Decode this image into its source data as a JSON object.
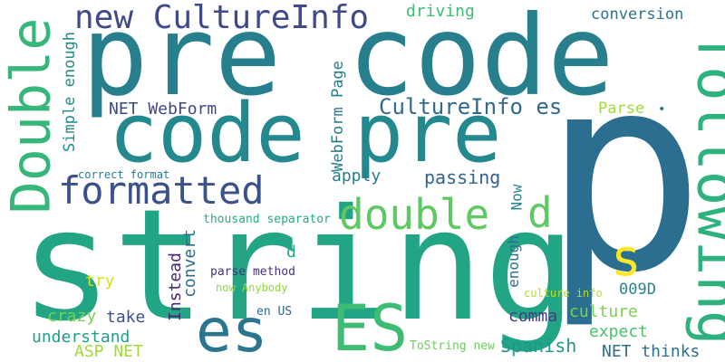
{
  "cloud": {
    "background": "#ffffff",
    "words": [
      {
        "id": "p",
        "text": "p",
        "color": "#2c6e8f"
      },
      {
        "id": "string",
        "text": "string",
        "color": "#21a585"
      },
      {
        "id": "pre-code",
        "text": "pre code",
        "color": "#277f8e"
      },
      {
        "id": "code-pre",
        "text": "code pre",
        "color": "#23898e"
      },
      {
        "id": "following",
        "text": "following",
        "color": "#2db27d"
      },
      {
        "id": "Double",
        "text": "Double",
        "color": "#35b779"
      },
      {
        "id": "new-CultureInfo",
        "text": "new CultureInfo",
        "color": "#3e4a89"
      },
      {
        "id": "formatted",
        "text": "formatted",
        "color": "#3b518b"
      },
      {
        "id": "double",
        "text": "double",
        "color": "#5ec962"
      },
      {
        "id": "d-large",
        "text": "d",
        "color": "#5ec962"
      },
      {
        "id": "es",
        "text": "es",
        "color": "#2a768e"
      },
      {
        "id": "ES",
        "text": "ES",
        "color": "#3fbc73"
      },
      {
        "id": "s",
        "text": "s",
        "color": "#fde725"
      },
      {
        "id": "CultureInfo-es",
        "text": "CultureInfo es",
        "color": "#31688e"
      },
      {
        "id": "NET-WebForm",
        "text": "NET WebForm",
        "color": "#3e4989"
      },
      {
        "id": "Simple-enough",
        "text": "Simple enough",
        "color": "#228c8d"
      },
      {
        "id": "WebForm-Page",
        "text": "WebForm Page",
        "color": "#277f8e"
      },
      {
        "id": "driving",
        "text": "driving",
        "color": "#3dbc74"
      },
      {
        "id": "conversion",
        "text": "conversion",
        "color": "#2c728e"
      },
      {
        "id": "Parse",
        "text": "Parse",
        "color": "#a0da39"
      },
      {
        "id": "dot",
        "text": "•",
        "color": "#2a788e"
      },
      {
        "id": "apply",
        "text": "apply",
        "color": "#287c8e"
      },
      {
        "id": "passing",
        "text": "passing",
        "color": "#33638d"
      },
      {
        "id": "Now",
        "text": "Now",
        "color": "#26828e"
      },
      {
        "id": "correct-format",
        "text": "correct format",
        "color": "#2a788e"
      },
      {
        "id": "convert",
        "text": "convert",
        "color": "#2f6c8e"
      },
      {
        "id": "thousand-separator",
        "text": "thousand separator",
        "color": "#26ad81"
      },
      {
        "id": "d-small",
        "text": "d",
        "color": "#20a386"
      },
      {
        "id": "Instead",
        "text": "Instead",
        "color": "#482475"
      },
      {
        "id": "try",
        "text": "try",
        "color": "#d8e219"
      },
      {
        "id": "parse-method",
        "text": "parse method",
        "color": "#46327e"
      },
      {
        "id": "now-Anybody",
        "text": "now Anybody",
        "color": "#90d743"
      },
      {
        "id": "enough",
        "text": "enough",
        "color": "#2c718e"
      },
      {
        "id": "009D",
        "text": "009D",
        "color": "#25848e"
      },
      {
        "id": "culture-info",
        "text": "culture info",
        "color": "#b5de2b"
      },
      {
        "id": "crazy",
        "text": "crazy",
        "color": "#7ad151"
      },
      {
        "id": "take",
        "text": "take",
        "color": "#3b528b"
      },
      {
        "id": "comma",
        "text": "comma",
        "color": "#433d84"
      },
      {
        "id": "culture",
        "text": "culture",
        "color": "#7ad151"
      },
      {
        "id": "en-US",
        "text": "en US",
        "color": "#31688e"
      },
      {
        "id": "expect",
        "text": "expect",
        "color": "#4ac16d"
      },
      {
        "id": "understand",
        "text": "understand",
        "color": "#1f9e89"
      },
      {
        "id": "Spanish",
        "text": "Spanish",
        "color": "#1f988b"
      },
      {
        "id": "ASP-NET",
        "text": "ASP NET",
        "color": "#9fda3a"
      },
      {
        "id": "ToString-new",
        "text": "ToString new",
        "color": "#6ccd5a"
      },
      {
        "id": "NET-thinks",
        "text": "NET thinks",
        "color": "#2e6e8e"
      }
    ]
  }
}
